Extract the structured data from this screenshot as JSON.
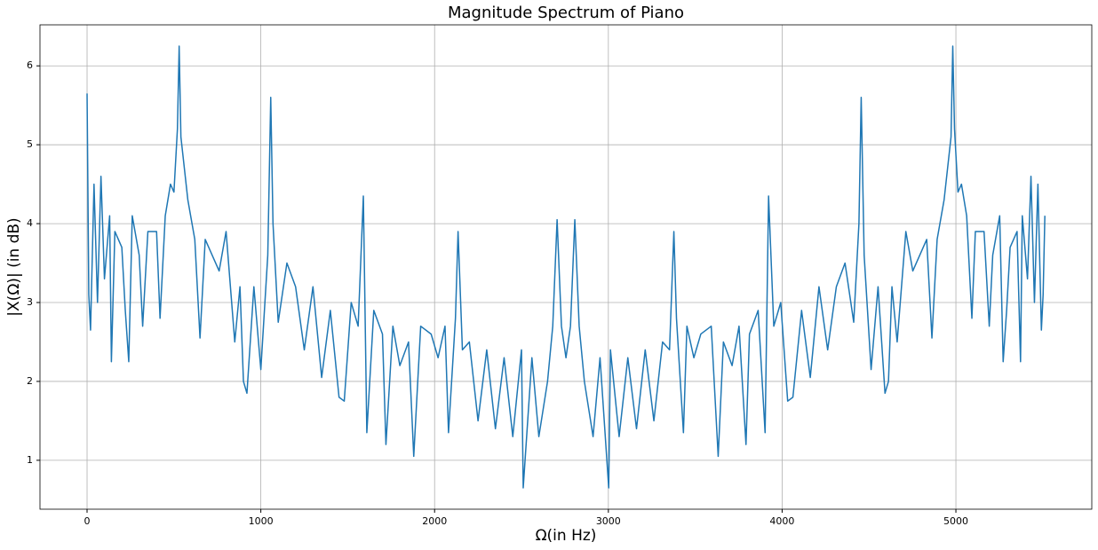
{
  "chart_data": {
    "type": "line",
    "title": "Magnitude Spectrum of Piano",
    "x_label": "Ω(in Hz)",
    "y_label": "|X(Ω)| (in dB)",
    "x": [
      0,
      10,
      20,
      40,
      60,
      80,
      100,
      130,
      140,
      160,
      200,
      220,
      240,
      260,
      300,
      320,
      350,
      400,
      420,
      450,
      480,
      500,
      520,
      530,
      540,
      580,
      620,
      650,
      680,
      720,
      760,
      800,
      850,
      880,
      900,
      920,
      960,
      1000,
      1040,
      1057,
      1070,
      1100,
      1150,
      1200,
      1250,
      1300,
      1350,
      1400,
      1450,
      1480,
      1520,
      1560,
      1590,
      1610,
      1650,
      1700,
      1720,
      1760,
      1800,
      1850,
      1880,
      1920,
      1980,
      2020,
      2060,
      2080,
      2120,
      2135,
      2160,
      2200,
      2250,
      2300,
      2350,
      2400,
      2450,
      2500,
      2510,
      2560,
      2600,
      2650,
      2680,
      2705,
      2730,
      2756,
      2782,
      2807,
      2832,
      2862,
      2912,
      2952,
      3002,
      3012,
      3062,
      3112,
      3162,
      3212,
      3262,
      3312,
      3352,
      3377,
      3392,
      3432,
      3452,
      3492,
      3532,
      3592,
      3632,
      3662,
      3712,
      3752,
      3792,
      3812,
      3862,
      3902,
      3922,
      3952,
      3992,
      4032,
      4062,
      4112,
      4162,
      4212,
      4262,
      4312,
      4362,
      4412,
      4442,
      4455,
      4472,
      4512,
      4552,
      4592,
      4612,
      4632,
      4662,
      4712,
      4752,
      4792,
      4832,
      4862,
      4892,
      4932,
      4972,
      4982,
      4992,
      5012,
      5032,
      5062,
      5092,
      5112,
      5162,
      5192,
      5212,
      5252,
      5272,
      5292,
      5312,
      5352,
      5372,
      5382,
      5412,
      5432,
      5452,
      5472,
      5492,
      5502,
      5512
    ],
    "series": [
      {
        "color": "#1f77b4",
        "values": [
          5.65,
          3.1,
          2.65,
          4.5,
          3.0,
          4.6,
          3.3,
          4.1,
          2.25,
          3.9,
          3.7,
          2.9,
          2.25,
          4.1,
          3.6,
          2.7,
          3.9,
          3.9,
          2.8,
          4.1,
          4.5,
          4.4,
          5.2,
          6.25,
          5.1,
          4.3,
          3.8,
          2.55,
          3.8,
          3.6,
          3.4,
          3.9,
          2.5,
          3.2,
          2.0,
          1.85,
          3.2,
          2.15,
          3.6,
          5.6,
          4.0,
          2.75,
          3.5,
          3.2,
          2.4,
          3.2,
          2.05,
          2.9,
          1.8,
          1.75,
          3.0,
          2.7,
          4.35,
          1.35,
          2.9,
          2.6,
          1.2,
          2.7,
          2.2,
          2.5,
          1.05,
          2.7,
          2.6,
          2.3,
          2.7,
          1.35,
          2.8,
          3.9,
          2.4,
          2.5,
          1.5,
          2.4,
          1.4,
          2.3,
          1.3,
          2.4,
          0.65,
          2.3,
          1.3,
          2.0,
          2.7,
          4.05,
          2.7,
          2.3,
          2.7,
          4.05,
          2.7,
          2.0,
          1.3,
          2.3,
          0.65,
          2.4,
          1.3,
          2.3,
          1.4,
          2.4,
          1.5,
          2.5,
          2.4,
          3.9,
          2.8,
          1.35,
          2.7,
          2.3,
          2.6,
          2.7,
          1.05,
          2.5,
          2.2,
          2.7,
          1.2,
          2.6,
          2.9,
          1.35,
          4.35,
          2.7,
          3.0,
          1.75,
          1.8,
          2.9,
          2.05,
          3.2,
          2.4,
          3.2,
          3.5,
          2.75,
          4.0,
          5.6,
          3.6,
          2.15,
          3.2,
          1.85,
          2.0,
          3.2,
          2.5,
          3.9,
          3.4,
          3.6,
          3.8,
          2.55,
          3.8,
          4.3,
          5.1,
          6.25,
          5.2,
          4.4,
          4.5,
          4.1,
          2.8,
          3.9,
          3.9,
          2.7,
          3.6,
          4.1,
          2.25,
          2.9,
          3.7,
          3.9,
          2.25,
          4.1,
          3.3,
          4.6,
          3.0,
          4.5,
          2.65,
          3.1,
          4.1
        ]
      }
    ],
    "xlim": [
      -271,
      5782
    ],
    "ylim": [
      0.38,
      6.52
    ],
    "xticks": [
      0,
      1000,
      2000,
      3000,
      4000,
      5000
    ],
    "yticks": [
      1,
      2,
      3,
      4,
      5,
      6
    ],
    "grid": true
  }
}
